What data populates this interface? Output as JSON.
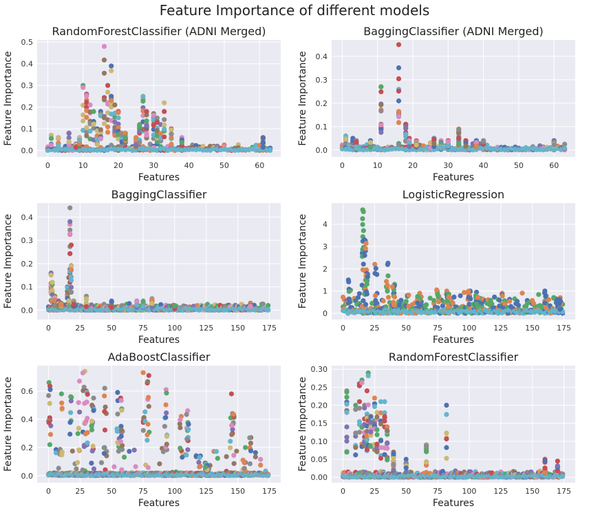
{
  "figure": {
    "title": "Feature Importance of different models"
  },
  "palette": [
    "#4c72b0",
    "#dd8452",
    "#55a868",
    "#c44e52",
    "#8172b3",
    "#937860",
    "#da8bc3",
    "#8c8c8c",
    "#ccb974",
    "#64b5cd"
  ],
  "chart_data": [
    {
      "type": "scatter",
      "title": "RandomForestClassifier (ADNI Merged)",
      "xlabel": "Features",
      "ylabel": "Feature Importance",
      "xlim": [
        -3,
        66
      ],
      "ylim": [
        -0.03,
        0.51
      ],
      "xticks": [
        0,
        10,
        20,
        30,
        40,
        50,
        60
      ],
      "yticks": [
        0.0,
        0.1,
        0.2,
        0.3,
        0.4,
        0.5
      ],
      "grid": true,
      "n_features": 64,
      "peaks": [
        [
          1,
          0.07
        ],
        [
          3,
          0.06
        ],
        [
          6,
          0.08
        ],
        [
          8,
          0.03
        ],
        [
          9,
          0.06
        ],
        [
          10,
          0.3
        ],
        [
          11,
          0.26
        ],
        [
          12,
          0.21
        ],
        [
          13,
          0.18
        ],
        [
          14,
          0.1
        ],
        [
          15,
          0.18
        ],
        [
          16,
          0.48
        ],
        [
          17,
          0.3
        ],
        [
          18,
          0.39
        ],
        [
          19,
          0.21
        ],
        [
          20,
          0.18
        ],
        [
          21,
          0.08
        ],
        [
          22,
          0.08
        ],
        [
          25,
          0.06
        ],
        [
          26,
          0.12
        ],
        [
          27,
          0.25
        ],
        [
          28,
          0.18
        ],
        [
          30,
          0.17
        ],
        [
          31,
          0.15
        ],
        [
          32,
          0.12
        ],
        [
          33,
          0.22
        ],
        [
          35,
          0.1
        ],
        [
          38,
          0.06
        ],
        [
          61,
          0.06
        ]
      ]
    },
    {
      "type": "scatter",
      "title": "BaggingClassifier (ADNI Merged)",
      "xlabel": "Features",
      "ylabel": "Feature Importance",
      "xlim": [
        -3,
        66
      ],
      "ylim": [
        -0.03,
        0.47
      ],
      "xticks": [
        0,
        10,
        20,
        30,
        40,
        50,
        60
      ],
      "yticks": [
        0.0,
        0.1,
        0.2,
        0.3,
        0.4
      ],
      "grid": true,
      "n_features": 64,
      "peaks": [
        [
          1,
          0.06
        ],
        [
          3,
          0.05
        ],
        [
          4,
          0.04
        ],
        [
          8,
          0.04
        ],
        [
          11,
          0.27
        ],
        [
          16,
          0.45
        ],
        [
          18,
          0.11
        ],
        [
          19,
          0.05
        ],
        [
          21,
          0.04
        ],
        [
          25,
          0.03
        ],
        [
          26,
          0.05
        ],
        [
          28,
          0.04
        ],
        [
          30,
          0.04
        ],
        [
          33,
          0.09
        ],
        [
          35,
          0.04
        ],
        [
          38,
          0.04
        ],
        [
          40,
          0.04
        ],
        [
          60,
          0.04
        ]
      ]
    },
    {
      "type": "scatter",
      "title": "BaggingClassifier",
      "xlabel": "Features",
      "ylabel": "Feature Importance",
      "xlim": [
        -9,
        184
      ],
      "ylim": [
        -0.04,
        0.46
      ],
      "xticks": [
        0,
        25,
        50,
        75,
        100,
        125,
        150,
        175
      ],
      "yticks": [
        0.0,
        0.1,
        0.2,
        0.3,
        0.4
      ],
      "grid": true,
      "n_features": 175,
      "peaks": [
        [
          2,
          0.16
        ],
        [
          3,
          0.12
        ],
        [
          5,
          0.06
        ],
        [
          8,
          0.04
        ],
        [
          10,
          0.03
        ],
        [
          15,
          0.1
        ],
        [
          16,
          0.14
        ],
        [
          17,
          0.44
        ],
        [
          18,
          0.28
        ],
        [
          20,
          0.04
        ],
        [
          30,
          0.06
        ],
        [
          50,
          0.04
        ],
        [
          70,
          0.04
        ],
        [
          75,
          0.04
        ],
        [
          82,
          0.05
        ],
        [
          100,
          0.02
        ],
        [
          160,
          0.03
        ]
      ]
    },
    {
      "type": "scatter",
      "title": "LogisticRegression",
      "xlabel": "Features",
      "ylabel": "Feature Importance",
      "xlim": [
        -9,
        184
      ],
      "ylim": [
        -0.28,
        4.95
      ],
      "xticks": [
        0,
        25,
        50,
        75,
        100,
        125,
        150,
        175
      ],
      "yticks": [
        0,
        1,
        2,
        3,
        4
      ],
      "grid": true,
      "n_features": 175,
      "peaks": [
        [
          16,
          4.65
        ],
        [
          18,
          3.3
        ],
        [
          17,
          2.95
        ],
        [
          19,
          1.95
        ],
        [
          26,
          2.2
        ],
        [
          35,
          2.25
        ],
        [
          40,
          1.3
        ],
        [
          5,
          1.5
        ],
        [
          60,
          0.9
        ],
        [
          75,
          1.05
        ],
        [
          83,
          1.0
        ],
        [
          100,
          1.0
        ],
        [
          106,
          0.95
        ],
        [
          127,
          0.9
        ],
        [
          160,
          1.0
        ],
        [
          172,
          0.7
        ]
      ]
    },
    {
      "type": "scatter",
      "title": "AdaBoostClassifier",
      "xlabel": "Features",
      "ylabel": "Feature Importance",
      "xlim": [
        -9,
        184
      ],
      "ylim": [
        -0.05,
        0.78
      ],
      "xticks": [
        0,
        25,
        50,
        75,
        100,
        125,
        150,
        175
      ],
      "yticks": [
        0.0,
        0.2,
        0.4,
        0.6
      ],
      "grid": true,
      "n_features": 175,
      "peaks": [
        [
          1,
          0.66
        ],
        [
          10,
          0.58
        ],
        [
          18,
          0.56
        ],
        [
          24,
          0.67
        ],
        [
          28,
          0.74
        ],
        [
          30,
          0.6
        ],
        [
          35,
          0.55
        ],
        [
          45,
          0.62
        ],
        [
          55,
          0.59
        ],
        [
          58,
          0.55
        ],
        [
          76,
          0.73
        ],
        [
          79,
          0.71
        ],
        [
          93,
          0.61
        ],
        [
          105,
          0.42
        ],
        [
          110,
          0.46
        ],
        [
          145,
          0.58
        ],
        [
          146,
          0.44
        ],
        [
          160,
          0.27
        ],
        [
          120,
          0.14
        ],
        [
          125,
          0.09
        ],
        [
          155,
          0.11
        ]
      ]
    },
    {
      "type": "scatter",
      "title": "RandomForestClassifier",
      "xlabel": "Features",
      "ylabel": "Feature Importance",
      "xlim": [
        -9,
        184
      ],
      "ylim": [
        -0.015,
        0.31
      ],
      "xticks": [
        0,
        25,
        50,
        75,
        100,
        125,
        150,
        175
      ],
      "yticks": [
        0.0,
        0.05,
        0.1,
        0.15,
        0.2,
        0.25,
        0.3
      ],
      "grid": true,
      "n_features": 175,
      "peaks": [
        [
          3,
          0.24
        ],
        [
          10,
          0.2
        ],
        [
          13,
          0.26
        ],
        [
          15,
          0.27
        ],
        [
          17,
          0.2
        ],
        [
          19,
          0.24
        ],
        [
          20,
          0.29
        ],
        [
          22,
          0.17
        ],
        [
          25,
          0.22
        ],
        [
          27,
          0.18
        ],
        [
          30,
          0.21
        ],
        [
          33,
          0.21
        ],
        [
          35,
          0.14
        ],
        [
          40,
          0.07
        ],
        [
          50,
          0.05
        ],
        [
          66,
          0.09
        ],
        [
          82,
          0.2
        ],
        [
          160,
          0.05
        ],
        [
          170,
          0.045
        ]
      ]
    }
  ]
}
